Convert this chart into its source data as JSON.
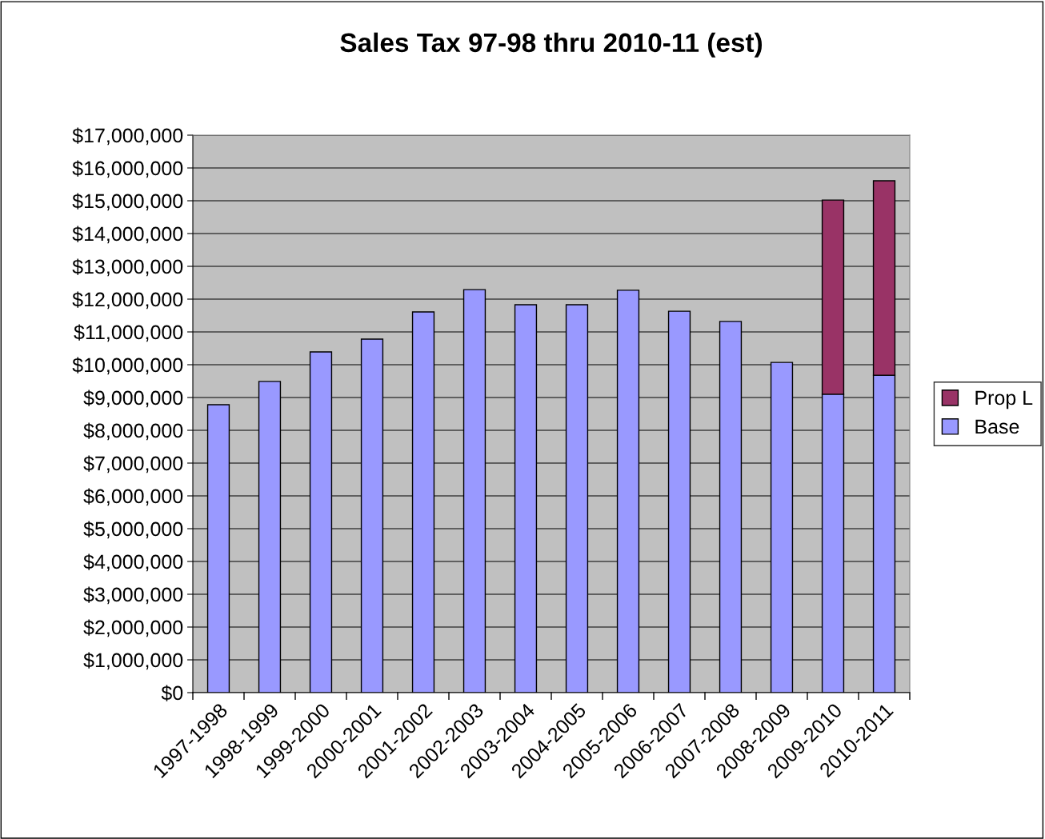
{
  "chart_data": {
    "type": "bar",
    "title": "Sales Tax 97-98 thru 2010-11 (est)",
    "stacked": true,
    "categories": [
      "1997-1998",
      "1998-1999",
      "1999-2000",
      "2000-2001",
      "2001-2002",
      "2002-2003",
      "2003-2004",
      "2004-2005",
      "2005-2006",
      "2006-2007",
      "2007-2008",
      "2008-2009",
      "2009-2010",
      "2010-2011"
    ],
    "series": [
      {
        "name": "Base",
        "color": "#9999ff",
        "values": [
          8780000,
          9490000,
          10390000,
          10780000,
          11610000,
          12290000,
          11830000,
          11830000,
          12270000,
          11630000,
          11320000,
          10070000,
          9100000,
          9680000
        ]
      },
      {
        "name": "Prop L",
        "color": "#993366",
        "values": [
          null,
          null,
          null,
          null,
          null,
          null,
          null,
          null,
          null,
          null,
          null,
          null,
          5920000,
          5930000
        ]
      }
    ],
    "ylim": [
      0,
      17000000
    ],
    "yticks": [
      {
        "value": 0,
        "label": "$0"
      },
      {
        "value": 1000000,
        "label": "$1,000,000"
      },
      {
        "value": 2000000,
        "label": "$2,000,000"
      },
      {
        "value": 3000000,
        "label": "$3,000,000"
      },
      {
        "value": 4000000,
        "label": "$4,000,000"
      },
      {
        "value": 5000000,
        "label": "$5,000,000"
      },
      {
        "value": 6000000,
        "label": "$6,000,000"
      },
      {
        "value": 7000000,
        "label": "$7,000,000"
      },
      {
        "value": 8000000,
        "label": "$8,000,000"
      },
      {
        "value": 9000000,
        "label": "$9,000,000"
      },
      {
        "value": 10000000,
        "label": "$10,000,000"
      },
      {
        "value": 11000000,
        "label": "$11,000,000"
      },
      {
        "value": 12000000,
        "label": "$12,000,000"
      },
      {
        "value": 13000000,
        "label": "$13,000,000"
      },
      {
        "value": 14000000,
        "label": "$14,000,000"
      },
      {
        "value": 15000000,
        "label": "$15,000,000"
      },
      {
        "value": 16000000,
        "label": "$16,000,000"
      },
      {
        "value": 17000000,
        "label": "$17,000,000"
      }
    ],
    "grid": "y",
    "legend": "right"
  }
}
